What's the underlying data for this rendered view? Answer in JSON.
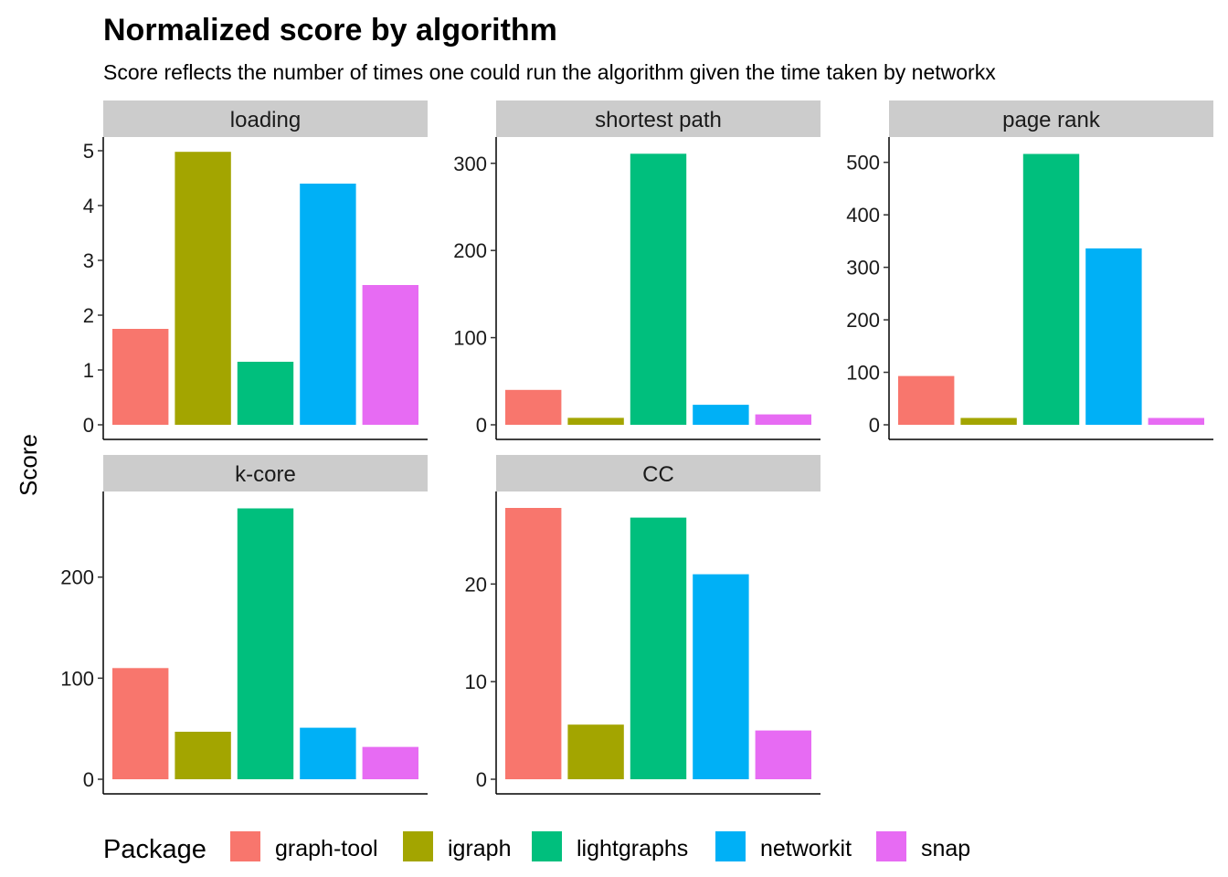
{
  "chart_data": {
    "type": "bar",
    "title": "Normalized score by algorithm",
    "subtitle": "Score reflects the number of times one could run the algorithm given the time taken by networkx",
    "ylabel": "Score",
    "categories": [
      "graph-tool",
      "igraph",
      "lightgraphs",
      "networkit",
      "snap"
    ],
    "colors": [
      "#F8766D",
      "#A3A500",
      "#00BF7D",
      "#00B0F6",
      "#E76BF3"
    ],
    "legend": {
      "title": "Package",
      "position": "bottom"
    },
    "panels": [
      {
        "name": "loading",
        "values": [
          1.75,
          4.98,
          1.15,
          4.4,
          2.55
        ],
        "ylim": [
          0,
          5.2
        ],
        "ticks": [
          0,
          1,
          2,
          3,
          4,
          5
        ]
      },
      {
        "name": "shortest path",
        "values": [
          40,
          8,
          311,
          23,
          12
        ],
        "ylim": [
          0,
          327
        ],
        "ticks": [
          0,
          100,
          200,
          300
        ]
      },
      {
        "name": "page rank",
        "values": [
          93,
          13,
          516,
          336,
          13
        ],
        "ylim": [
          0,
          543
        ],
        "ticks": [
          0,
          100,
          200,
          300,
          400,
          500
        ]
      },
      {
        "name": "k-core",
        "values": [
          110,
          47,
          268,
          51,
          32
        ],
        "ylim": [
          0,
          282
        ],
        "ticks": [
          0,
          100,
          200
        ]
      },
      {
        "name": "CC",
        "values": [
          27.8,
          5.6,
          26.8,
          21,
          5
        ],
        "ylim": [
          0,
          29.2
        ],
        "ticks": [
          0,
          10,
          20
        ]
      }
    ]
  }
}
